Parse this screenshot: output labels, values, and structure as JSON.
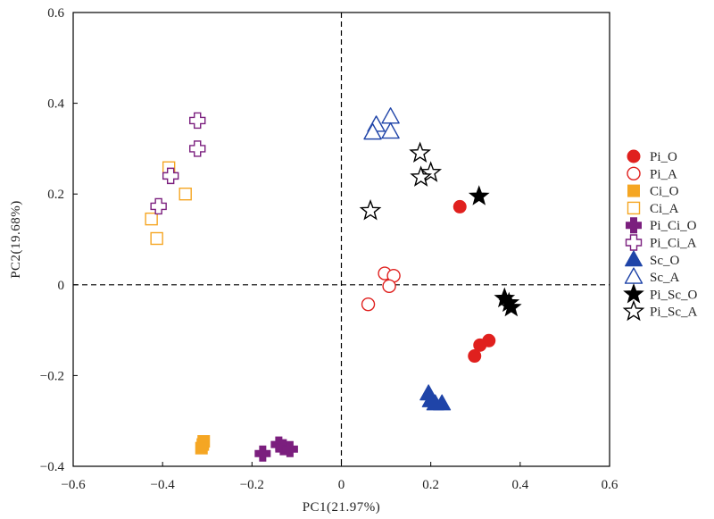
{
  "chart_data": {
    "type": "scatter",
    "xlabel": "PC1(21.97%)",
    "ylabel": "PC2(19.68%)",
    "xlim": [
      -0.6,
      0.6
    ],
    "ylim": [
      -0.4,
      0.6
    ],
    "xticks": [
      -0.6,
      -0.4,
      -0.2,
      0,
      0.2,
      0.4,
      0.6
    ],
    "yticks": [
      -0.4,
      -0.2,
      0,
      0.2,
      0.4,
      0.6
    ],
    "x_tick_labels": [
      "−0.6",
      "−0.4",
      "−0.2",
      "0",
      "0.2",
      "0.4",
      "0.6"
    ],
    "y_tick_labels": [
      "−0.4",
      "−0.2",
      "0",
      "0.2",
      "0.4",
      "0.6"
    ],
    "grid": false,
    "reference_lines": {
      "x": 0,
      "y": 0,
      "style": "dashed"
    },
    "legend_position": "right",
    "series": [
      {
        "name": "Pi_O",
        "marker": "circle",
        "filled": true,
        "color": "#e0201e",
        "points": [
          [
            0.265,
            0.172
          ],
          [
            0.33,
            -0.123
          ],
          [
            0.31,
            -0.133
          ],
          [
            0.298,
            -0.157
          ]
        ]
      },
      {
        "name": "Pi_A",
        "marker": "circle",
        "filled": false,
        "color": "#e0201e",
        "points": [
          [
            0.097,
            0.025
          ],
          [
            0.117,
            0.02
          ],
          [
            0.107,
            -0.003
          ],
          [
            0.06,
            -0.043
          ]
        ]
      },
      {
        "name": "Ci_O",
        "marker": "square",
        "filled": true,
        "color": "#f5a623",
        "points": [
          [
            -0.308,
            -0.345
          ],
          [
            -0.31,
            -0.352
          ],
          [
            -0.313,
            -0.36
          ]
        ]
      },
      {
        "name": "Ci_A",
        "marker": "square",
        "filled": false,
        "color": "#f5a623",
        "points": [
          [
            -0.386,
            0.258
          ],
          [
            -0.349,
            0.2
          ],
          [
            -0.425,
            0.145
          ],
          [
            -0.413,
            0.102
          ]
        ]
      },
      {
        "name": "Pi_Ci_O",
        "marker": "cross",
        "filled": true,
        "color": "#7b1f7e",
        "points": [
          [
            -0.176,
            -0.372
          ],
          [
            -0.14,
            -0.352
          ],
          [
            -0.13,
            -0.358
          ],
          [
            -0.115,
            -0.362
          ]
        ]
      },
      {
        "name": "Pi_Ci_A",
        "marker": "cross",
        "filled": false,
        "color": "#7b1f7e",
        "points": [
          [
            -0.322,
            0.362
          ],
          [
            -0.322,
            0.3
          ],
          [
            -0.382,
            0.24
          ],
          [
            -0.409,
            0.173
          ]
        ]
      },
      {
        "name": "Sc_O",
        "marker": "triangle",
        "filled": true,
        "color": "#1f44a8",
        "points": [
          [
            0.195,
            -0.24
          ],
          [
            0.2,
            -0.255
          ],
          [
            0.21,
            -0.262
          ],
          [
            0.225,
            -0.262
          ]
        ]
      },
      {
        "name": "Sc_A",
        "marker": "triangle",
        "filled": false,
        "color": "#1f44a8",
        "points": [
          [
            0.078,
            0.352
          ],
          [
            0.11,
            0.37
          ],
          [
            0.07,
            0.335
          ],
          [
            0.11,
            0.337
          ]
        ]
      },
      {
        "name": "Pi_Sc_O",
        "marker": "star",
        "filled": true,
        "color": "#000000",
        "points": [
          [
            0.308,
            0.195
          ],
          [
            0.365,
            -0.03
          ],
          [
            0.375,
            -0.04
          ],
          [
            0.38,
            -0.05
          ]
        ]
      },
      {
        "name": "Pi_Sc_A",
        "marker": "star",
        "filled": false,
        "color": "#000000",
        "points": [
          [
            0.176,
            0.29
          ],
          [
            0.2,
            0.247
          ],
          [
            0.178,
            0.237
          ],
          [
            0.065,
            0.163
          ]
        ]
      }
    ]
  }
}
